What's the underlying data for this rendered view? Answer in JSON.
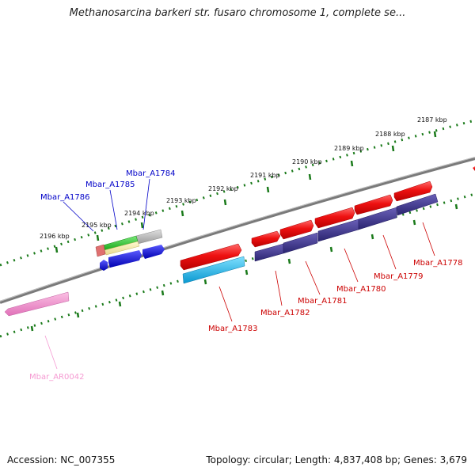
{
  "title": "Methanosarcina barkeri str. fusaro chromosome 1, complete se...",
  "footer": {
    "accession": "Accession: NC_007355",
    "stats": "Topology: circular; Length: 4,837,408 bp; Genes: 3,679"
  },
  "ticks": {
    "kbp_2196": "2196 kbp",
    "kbp_2195": "2195 kbp",
    "kbp_2194": "2194 kbp",
    "kbp_2193": "2193 kbp",
    "kbp_2192": "2192 kbp",
    "kbp_2191": "2191 kbp",
    "kbp_2190": "2190 kbp",
    "kbp_2189": "2189 kbp",
    "kbp_2188": "2188 kbp",
    "kbp_2187": "2187 kbp"
  },
  "genes": {
    "g1786": "Mbar_A1786",
    "g1785": "Mbar_A1785",
    "g1784": "Mbar_A1784",
    "g1783": "Mbar_A1783",
    "g1782": "Mbar_A1782",
    "g1781": "Mbar_A1781",
    "g1780": "Mbar_A1780",
    "g1779": "Mbar_A1779",
    "g1778": "Mbar_A1778",
    "rna0042": "Mbar_AR0042"
  },
  "colors": {
    "forward_gene": "#e41a1c",
    "reverse_gene": "#3b3286",
    "blue_label": "#0000c8",
    "red_label": "#cc0000",
    "pink_label": "#f59ad2",
    "backbone": "#7a7a7a",
    "ruler": "#1a7a1a"
  }
}
